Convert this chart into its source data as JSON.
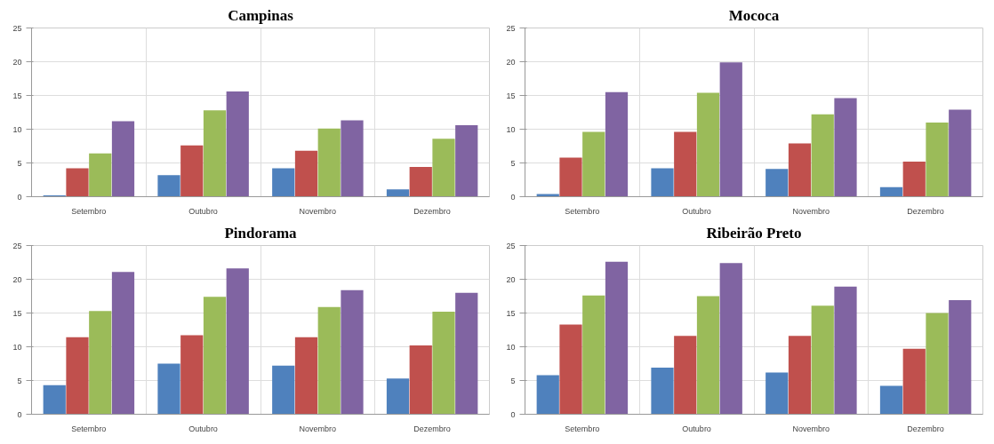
{
  "chart_data": [
    {
      "type": "bar",
      "title": "Campinas",
      "categories": [
        "Setembro",
        "Outubro",
        "Novembro",
        "Dezembro"
      ],
      "ylim": [
        0,
        25
      ],
      "yticks": [
        0,
        5,
        10,
        15,
        20,
        25
      ],
      "grid": true,
      "series": [
        {
          "color": "#4f81bd",
          "values": [
            0.2,
            3.2,
            4.2,
            1.1
          ]
        },
        {
          "color": "#c0504d",
          "values": [
            4.2,
            7.6,
            6.8,
            4.4
          ]
        },
        {
          "color": "#9bbb59",
          "values": [
            6.4,
            12.8,
            10.1,
            8.6
          ]
        },
        {
          "color": "#8064a2",
          "values": [
            11.2,
            15.6,
            11.3,
            10.6
          ]
        }
      ]
    },
    {
      "type": "bar",
      "title": "Mococa",
      "categories": [
        "Setembro",
        "Outubro",
        "Novembro",
        "Dezembro"
      ],
      "ylim": [
        0,
        25
      ],
      "yticks": [
        0,
        5,
        10,
        15,
        20,
        25
      ],
      "grid": true,
      "series": [
        {
          "color": "#4f81bd",
          "values": [
            0.4,
            4.2,
            4.1,
            1.4
          ]
        },
        {
          "color": "#c0504d",
          "values": [
            5.8,
            9.6,
            7.9,
            5.2
          ]
        },
        {
          "color": "#9bbb59",
          "values": [
            9.6,
            15.4,
            12.2,
            11.0
          ]
        },
        {
          "color": "#8064a2",
          "values": [
            15.5,
            19.9,
            14.6,
            12.9
          ]
        }
      ]
    },
    {
      "type": "bar",
      "title": "Pindorama",
      "categories": [
        "Setembro",
        "Outubro",
        "Novembro",
        "Dezembro"
      ],
      "ylim": [
        0,
        25
      ],
      "yticks": [
        0,
        5,
        10,
        15,
        20,
        25
      ],
      "grid": true,
      "series": [
        {
          "color": "#4f81bd",
          "values": [
            4.3,
            7.5,
            7.2,
            5.3
          ]
        },
        {
          "color": "#c0504d",
          "values": [
            11.4,
            11.7,
            11.4,
            10.2
          ]
        },
        {
          "color": "#9bbb59",
          "values": [
            15.3,
            17.4,
            15.9,
            15.2
          ]
        },
        {
          "color": "#8064a2",
          "values": [
            21.1,
            21.6,
            18.4,
            18.0
          ]
        }
      ]
    },
    {
      "type": "bar",
      "title": "Ribeirão Preto",
      "categories": [
        "Setembro",
        "Outubro",
        "Novembro",
        "Dezembro"
      ],
      "ylim": [
        0,
        25
      ],
      "yticks": [
        0,
        5,
        10,
        15,
        20,
        25
      ],
      "grid": true,
      "series": [
        {
          "color": "#4f81bd",
          "values": [
            5.8,
            6.9,
            6.2,
            4.2
          ]
        },
        {
          "color": "#c0504d",
          "values": [
            13.3,
            11.6,
            11.6,
            9.7
          ]
        },
        {
          "color": "#9bbb59",
          "values": [
            17.6,
            17.5,
            16.1,
            15.0
          ]
        },
        {
          "color": "#8064a2",
          "values": [
            22.6,
            22.4,
            18.9,
            16.9
          ]
        }
      ]
    }
  ]
}
